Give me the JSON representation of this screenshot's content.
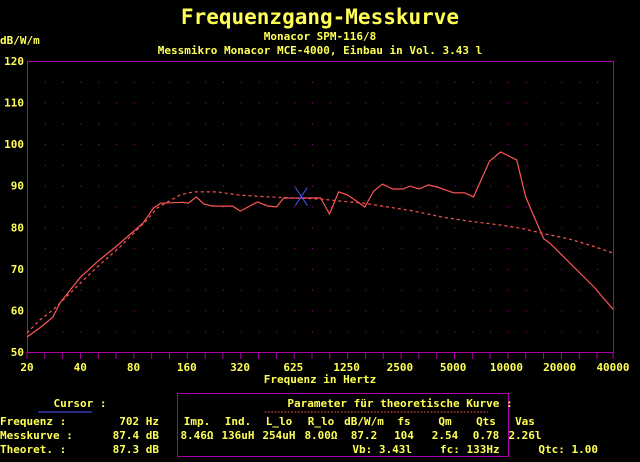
{
  "header": {
    "title": "Frequenzgang-Messkurve",
    "subtitle1": "Monacor SPM-116/8",
    "subtitle2": "Messmikro Monacor MCE-4000, Einbau in Vol. 3.43 l"
  },
  "chart_data": {
    "type": "line",
    "title": "Frequenzgang-Messkurve",
    "xlabel": "Frequenz in Hertz",
    "ylabel": "dB/W/m",
    "xscale": "log",
    "xlim": [
      20,
      40000
    ],
    "ylim": [
      50,
      120
    ],
    "grid": true,
    "x_ticks": [
      "20",
      "40",
      "80",
      "160",
      "320",
      "625",
      "1250",
      "2500",
      "5000",
      "10000",
      "20000",
      "40000"
    ],
    "y_ticks": [
      "50",
      "60",
      "70",
      "80",
      "90",
      "100",
      "110",
      "120"
    ],
    "colors": {
      "measured": "#ff5555",
      "theoretical": "#ff5555",
      "axis": "#aa00aa",
      "text": "#ffff55",
      "cursor": "#5555ff"
    },
    "series": [
      {
        "style": "solid",
        "points": [
          [
            20,
            53.6
          ],
          [
            23.6,
            55.8
          ],
          [
            28,
            58.4
          ],
          [
            30.7,
            61.8
          ],
          [
            40,
            68
          ],
          [
            51,
            72.1
          ],
          [
            64,
            75.5
          ],
          [
            90,
            81
          ],
          [
            103,
            84.6
          ],
          [
            113,
            85.8
          ],
          [
            152,
            86
          ],
          [
            162,
            85.8
          ],
          [
            180,
            87.3
          ],
          [
            198,
            85.6
          ],
          [
            222,
            85.1
          ],
          [
            288,
            85.1
          ],
          [
            318,
            83.9
          ],
          [
            398,
            86.1
          ],
          [
            455,
            85.1
          ],
          [
            509,
            84.9
          ],
          [
            557,
            87
          ],
          [
            900,
            87.1
          ],
          [
            1012,
            83.2
          ],
          [
            1139,
            88.5
          ],
          [
            1277,
            87.8
          ],
          [
            1599,
            84.9
          ],
          [
            1794,
            88.7
          ],
          [
            2013,
            90.4
          ],
          [
            2293,
            89.2
          ],
          [
            2618,
            89.2
          ],
          [
            2872,
            89.9
          ],
          [
            3234,
            89.2
          ],
          [
            3640,
            90.2
          ],
          [
            4097,
            89.7
          ],
          [
            5055,
            88.3
          ],
          [
            5842,
            88.3
          ],
          [
            6551,
            87.3
          ],
          [
            8061,
            95.9
          ],
          [
            9307,
            98.1
          ],
          [
            11470,
            96.2
          ],
          [
            12887,
            87.3
          ],
          [
            14490,
            82.2
          ],
          [
            16300,
            77.2
          ],
          [
            17620,
            76.2
          ],
          [
            31300,
            65.6
          ],
          [
            40000,
            60.3
          ]
        ]
      },
      {
        "style": "dashed",
        "points": [
          [
            20,
            54.6
          ],
          [
            23.6,
            57.7
          ],
          [
            28,
            60.1
          ],
          [
            36.4,
            64.9
          ],
          [
            49,
            70.2
          ],
          [
            67,
            75.3
          ],
          [
            95,
            81.8
          ],
          [
            108,
            84.6
          ],
          [
            124,
            86.1
          ],
          [
            146,
            87.8
          ],
          [
            173,
            88.5
          ],
          [
            237,
            88.5
          ],
          [
            307,
            87.8
          ],
          [
            455,
            87.3
          ],
          [
            900,
            86.8
          ],
          [
            1170,
            86.3
          ],
          [
            1580,
            85.8
          ],
          [
            2150,
            84.9
          ],
          [
            3030,
            83.9
          ],
          [
            4300,
            82.5
          ],
          [
            6100,
            81.5
          ],
          [
            9440,
            80.5
          ],
          [
            12650,
            79.6
          ],
          [
            16500,
            78.4
          ],
          [
            22600,
            77.2
          ],
          [
            31700,
            75.3
          ],
          [
            40000,
            73.8
          ]
        ]
      }
    ],
    "cursor_marker": {
      "x": 702,
      "y": 87.4
    }
  },
  "cursor": {
    "heading": "Cursor :",
    "rows": [
      {
        "label": "Frequenz  :",
        "value": "702 Hz"
      },
      {
        "label": "Messkurve :",
        "value": "87.4 dB"
      },
      {
        "label": "Theoret.  :",
        "value": "87.3 dB"
      }
    ]
  },
  "params": {
    "heading": "Parameter für theoretische Kurve :",
    "headers": [
      "Imp.",
      "Ind.",
      "L_lo",
      "R_lo",
      "dB/W/m",
      "fs",
      "Qm",
      "Qts",
      "Vas"
    ],
    "values": [
      "8.46Ω",
      "136uH",
      "254uH",
      "8.00Ω",
      "87.2",
      "104",
      "2.54",
      "0.78",
      "2.26l"
    ],
    "vb": "Vb: 3.43l",
    "fc": "fc: 133Hz",
    "qtc": "Qtc: 1.00"
  }
}
